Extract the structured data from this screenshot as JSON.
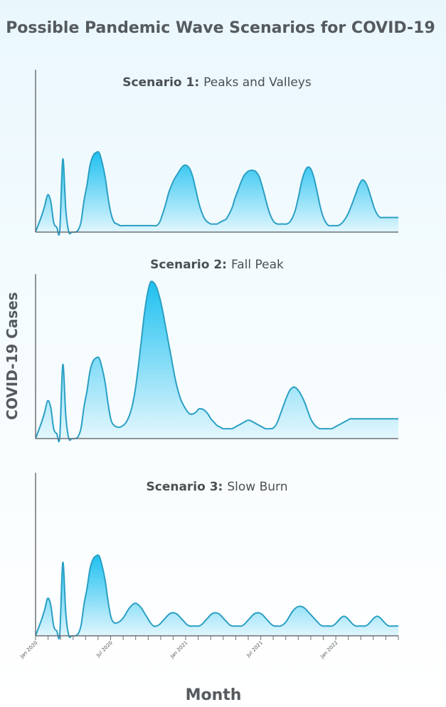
{
  "title": "Possible Pandemic Wave Scenarios for COVID-19",
  "ylabel": "COVID-19 Cases",
  "xlabel": "Month",
  "colors": {
    "fill_top": "#1ec0f0",
    "fill_bottom": "#e8f8fe",
    "line": "#2a9fc4",
    "axis": "#6d7276"
  },
  "chart_data": [
    {
      "type": "area",
      "title_bold": "Scenario 1:",
      "title_rest": "Peaks and Valleys",
      "x": [
        0,
        1,
        2,
        3,
        4,
        5,
        6,
        7,
        8,
        9,
        10,
        11,
        12,
        13,
        14,
        15,
        16,
        17,
        18,
        19,
        20,
        21,
        22,
        23,
        24,
        25,
        26,
        27,
        28,
        29,
        30,
        31,
        32,
        33,
        34,
        35,
        36,
        37,
        38,
        39,
        40,
        41,
        42,
        43,
        44,
        45,
        46,
        47,
        48,
        49,
        50,
        51,
        52,
        53,
        54,
        55,
        56,
        57,
        58,
        59,
        60,
        61,
        62,
        63,
        64,
        65,
        66,
        67,
        68,
        69,
        70,
        71,
        72,
        73,
        74,
        75,
        76,
        77,
        78,
        79,
        80,
        81,
        82,
        83,
        84,
        85,
        86,
        87,
        88,
        89,
        90,
        91,
        92,
        93,
        94,
        95,
        96,
        97,
        98,
        99,
        100,
        101,
        102,
        103,
        104,
        105,
        106,
        107,
        108,
        109,
        110,
        111,
        112,
        113,
        114,
        115,
        116,
        117,
        118,
        119,
        120
      ],
      "values": [
        0,
        0.25,
        0.5,
        0.8,
        1.15,
        0.95,
        0.3,
        0.15,
        0.05,
        2.25,
        0.7,
        0,
        0,
        0,
        0.05,
        0.3,
        0.95,
        1.45,
        2.05,
        2.35,
        2.45,
        2.45,
        2.15,
        1.7,
        1.05,
        0.55,
        0.3,
        0.25,
        0.2,
        0.2,
        0.2,
        0.2,
        0.2,
        0.2,
        0.2,
        0.2,
        0.2,
        0.2,
        0.2,
        0.2,
        0.2,
        0.3,
        0.55,
        0.85,
        1.2,
        1.45,
        1.65,
        1.8,
        1.95,
        2.05,
        2.05,
        1.95,
        1.7,
        1.3,
        0.9,
        0.6,
        0.4,
        0.3,
        0.25,
        0.25,
        0.25,
        0.3,
        0.35,
        0.4,
        0.55,
        0.75,
        1.05,
        1.3,
        1.55,
        1.75,
        1.85,
        1.9,
        1.9,
        1.85,
        1.7,
        1.4,
        1.05,
        0.7,
        0.45,
        0.3,
        0.25,
        0.25,
        0.25,
        0.25,
        0.3,
        0.45,
        0.7,
        1.1,
        1.55,
        1.85,
        2.0,
        1.95,
        1.7,
        1.3,
        0.85,
        0.5,
        0.3,
        0.2,
        0.2,
        0.2,
        0.2,
        0.25,
        0.35,
        0.5,
        0.7,
        0.95,
        1.2,
        1.45,
        1.6,
        1.55,
        1.35,
        1.05,
        0.75,
        0.55,
        0.45,
        0.45,
        0.45,
        0.45,
        0.45,
        0.45,
        0.45
      ],
      "ylim": [
        0,
        5
      ]
    },
    {
      "type": "area",
      "title_bold": "Scenario 2:",
      "title_rest": "Fall Peak",
      "x": [
        0,
        1,
        2,
        3,
        4,
        5,
        6,
        7,
        8,
        9,
        10,
        11,
        12,
        13,
        14,
        15,
        16,
        17,
        18,
        19,
        20,
        21,
        22,
        23,
        24,
        25,
        26,
        27,
        28,
        29,
        30,
        31,
        32,
        33,
        34,
        35,
        36,
        37,
        38,
        39,
        40,
        41,
        42,
        43,
        44,
        45,
        46,
        47,
        48,
        49,
        50,
        51,
        52,
        53,
        54,
        55,
        56,
        57,
        58,
        59,
        60,
        61,
        62,
        63,
        64,
        65,
        66,
        67,
        68,
        69,
        70,
        71,
        72,
        73,
        74,
        75,
        76,
        77,
        78,
        79,
        80,
        81,
        82,
        83,
        84,
        85,
        86,
        87,
        88,
        89,
        90,
        91,
        92,
        93,
        94,
        95,
        96,
        97,
        98,
        99,
        100,
        101,
        102,
        103,
        104,
        105,
        106,
        107,
        108,
        109,
        110,
        111,
        112,
        113,
        114,
        115,
        116,
        117,
        118,
        119,
        120
      ],
      "values": [
        0,
        0.25,
        0.5,
        0.8,
        1.15,
        0.95,
        0.3,
        0.15,
        0.05,
        2.25,
        0.7,
        0,
        0,
        0,
        0.05,
        0.3,
        0.95,
        1.45,
        2.05,
        2.35,
        2.45,
        2.45,
        2.15,
        1.7,
        1.05,
        0.55,
        0.4,
        0.35,
        0.35,
        0.4,
        0.5,
        0.7,
        1.0,
        1.5,
        2.2,
        3.0,
        3.8,
        4.4,
        4.75,
        4.75,
        4.6,
        4.3,
        3.9,
        3.4,
        2.9,
        2.4,
        1.9,
        1.5,
        1.2,
        1.0,
        0.85,
        0.75,
        0.75,
        0.8,
        0.9,
        0.9,
        0.85,
        0.75,
        0.6,
        0.5,
        0.4,
        0.35,
        0.3,
        0.3,
        0.3,
        0.3,
        0.35,
        0.4,
        0.45,
        0.5,
        0.55,
        0.55,
        0.5,
        0.45,
        0.4,
        0.35,
        0.3,
        0.3,
        0.3,
        0.35,
        0.5,
        0.75,
        1.0,
        1.25,
        1.45,
        1.55,
        1.55,
        1.45,
        1.3,
        1.1,
        0.85,
        0.6,
        0.45,
        0.35,
        0.3,
        0.3,
        0.3,
        0.3,
        0.3,
        0.35,
        0.4,
        0.45,
        0.5,
        0.55,
        0.6,
        0.6,
        0.6,
        0.6,
        0.6,
        0.6,
        0.6,
        0.6,
        0.6,
        0.6,
        0.6,
        0.6,
        0.6,
        0.6,
        0.6,
        0.6,
        0.6
      ],
      "ylim": [
        0,
        5
      ]
    },
    {
      "type": "area",
      "title_bold": "Scenario 3:",
      "title_rest": "Slow Burn",
      "x": [
        0,
        1,
        2,
        3,
        4,
        5,
        6,
        7,
        8,
        9,
        10,
        11,
        12,
        13,
        14,
        15,
        16,
        17,
        18,
        19,
        20,
        21,
        22,
        23,
        24,
        25,
        26,
        27,
        28,
        29,
        30,
        31,
        32,
        33,
        34,
        35,
        36,
        37,
        38,
        39,
        40,
        41,
        42,
        43,
        44,
        45,
        46,
        47,
        48,
        49,
        50,
        51,
        52,
        53,
        54,
        55,
        56,
        57,
        58,
        59,
        60,
        61,
        62,
        63,
        64,
        65,
        66,
        67,
        68,
        69,
        70,
        71,
        72,
        73,
        74,
        75,
        76,
        77,
        78,
        79,
        80,
        81,
        82,
        83,
        84,
        85,
        86,
        87,
        88,
        89,
        90,
        91,
        92,
        93,
        94,
        95,
        96,
        97,
        98,
        99,
        100,
        101,
        102,
        103,
        104,
        105,
        106,
        107,
        108,
        109,
        110,
        111,
        112,
        113,
        114,
        115,
        116,
        117,
        118,
        119,
        120
      ],
      "values": [
        0,
        0.25,
        0.5,
        0.8,
        1.15,
        0.95,
        0.3,
        0.15,
        0.05,
        2.25,
        0.7,
        0,
        0,
        0,
        0.05,
        0.3,
        0.95,
        1.45,
        2.05,
        2.35,
        2.45,
        2.45,
        2.15,
        1.7,
        1.05,
        0.55,
        0.4,
        0.4,
        0.45,
        0.55,
        0.7,
        0.85,
        0.95,
        1.0,
        0.95,
        0.85,
        0.7,
        0.55,
        0.4,
        0.3,
        0.3,
        0.35,
        0.45,
        0.55,
        0.65,
        0.7,
        0.7,
        0.65,
        0.55,
        0.45,
        0.35,
        0.3,
        0.3,
        0.3,
        0.3,
        0.35,
        0.45,
        0.55,
        0.65,
        0.7,
        0.7,
        0.65,
        0.55,
        0.45,
        0.35,
        0.3,
        0.3,
        0.3,
        0.3,
        0.35,
        0.45,
        0.55,
        0.65,
        0.7,
        0.7,
        0.65,
        0.55,
        0.45,
        0.35,
        0.3,
        0.3,
        0.3,
        0.35,
        0.45,
        0.6,
        0.75,
        0.85,
        0.9,
        0.9,
        0.85,
        0.75,
        0.65,
        0.55,
        0.45,
        0.35,
        0.3,
        0.3,
        0.3,
        0.3,
        0.35,
        0.45,
        0.55,
        0.6,
        0.55,
        0.45,
        0.35,
        0.3,
        0.3,
        0.3,
        0.3,
        0.35,
        0.45,
        0.55,
        0.6,
        0.55,
        0.45,
        0.35,
        0.3,
        0.3,
        0.3,
        0.3
      ],
      "ylim": [
        0,
        5
      ]
    }
  ],
  "x_ticks": {
    "labels": [
      "Jan 2020",
      "Jul 2020",
      "Jan 2021",
      "Jul 2021",
      "Jan 2022"
    ]
  }
}
